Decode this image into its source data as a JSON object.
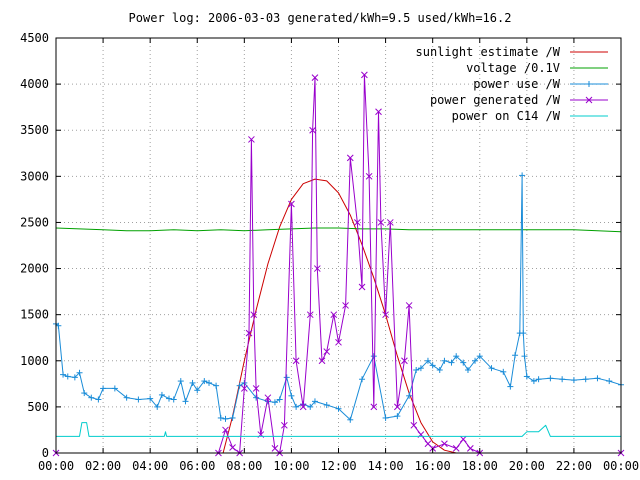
{
  "chart_data": {
    "type": "line",
    "title": "Power log: 2006-03-03 generated/kWh=9.5 used/kWh=16.2",
    "xlabel": "",
    "ylabel": "",
    "xlim": [
      0,
      24
    ],
    "ylim": [
      0,
      4500
    ],
    "x_ticks": [
      0,
      2,
      4,
      6,
      8,
      10,
      12,
      14,
      16,
      18,
      20,
      22,
      24
    ],
    "x_tick_labels": [
      "00:00",
      "02:00",
      "04:00",
      "06:00",
      "08:00",
      "10:00",
      "12:00",
      "14:00",
      "16:00",
      "18:00",
      "20:00",
      "22:00",
      "00:00"
    ],
    "y_ticks": [
      0,
      500,
      1000,
      1500,
      2000,
      2500,
      3000,
      3500,
      4000,
      4500
    ],
    "y_tick_labels": [
      "0",
      "500",
      "1000",
      "1500",
      "2000",
      "2500",
      "3000",
      "3500",
      "4000",
      "4500"
    ],
    "grid": true,
    "legend_position": "top-right",
    "series": [
      {
        "name": "sunlight estimate /W",
        "color": "#cc0000",
        "marker": "none",
        "x": [
          7.1,
          7.5,
          8.0,
          8.5,
          9.0,
          9.5,
          10.0,
          10.5,
          11.0,
          11.5,
          12.0,
          12.5,
          13.0,
          13.5,
          14.0,
          14.5,
          15.0,
          15.5,
          16.0,
          16.5,
          17.0
        ],
        "values": [
          0,
          400,
          1000,
          1550,
          2050,
          2450,
          2750,
          2920,
          2970,
          2950,
          2820,
          2580,
          2260,
          1900,
          1500,
          1050,
          650,
          330,
          120,
          30,
          0
        ]
      },
      {
        "name": "voltage /0.1V",
        "color": "#00a000",
        "marker": "none",
        "x": [
          0,
          1,
          2,
          3,
          4,
          5,
          6,
          7,
          8,
          9,
          10,
          11,
          12,
          13,
          14,
          15,
          16,
          17,
          18,
          19,
          20,
          21,
          22,
          23,
          24
        ],
        "values": [
          2440,
          2430,
          2420,
          2410,
          2410,
          2420,
          2410,
          2420,
          2410,
          2420,
          2430,
          2440,
          2440,
          2430,
          2430,
          2420,
          2420,
          2420,
          2420,
          2420,
          2420,
          2420,
          2420,
          2410,
          2400
        ]
      },
      {
        "name": "power use /W",
        "color": "#1a8cd8",
        "marker": "plus",
        "x": [
          0,
          0.1,
          0.3,
          0.5,
          0.8,
          1.0,
          1.2,
          1.5,
          1.8,
          2.0,
          2.5,
          3.0,
          3.5,
          4.0,
          4.3,
          4.5,
          4.8,
          5.0,
          5.3,
          5.5,
          5.8,
          6.0,
          6.3,
          6.5,
          6.8,
          7.0,
          7.2,
          7.5,
          7.8,
          8.0,
          8.5,
          9.0,
          9.3,
          9.5,
          9.8,
          10.0,
          10.2,
          10.5,
          10.8,
          11.0,
          11.5,
          12.0,
          12.5,
          13.0,
          13.5,
          14.0,
          14.5,
          15.0,
          15.3,
          15.5,
          15.8,
          16.0,
          16.3,
          16.5,
          16.8,
          17.0,
          17.3,
          17.5,
          17.8,
          18.0,
          18.5,
          19.0,
          19.3,
          19.5,
          19.7,
          19.8,
          19.85,
          19.9,
          20.0,
          20.3,
          20.5,
          21.0,
          21.5,
          22.0,
          22.5,
          23.0,
          23.5,
          24.0
        ],
        "values": [
          1400,
          1380,
          850,
          830,
          820,
          870,
          650,
          600,
          580,
          700,
          700,
          600,
          580,
          590,
          500,
          630,
          590,
          580,
          780,
          560,
          760,
          680,
          780,
          760,
          730,
          380,
          370,
          380,
          730,
          760,
          600,
          560,
          550,
          580,
          820,
          620,
          500,
          530,
          500,
          560,
          520,
          480,
          360,
          800,
          1050,
          380,
          400,
          620,
          900,
          920,
          1000,
          950,
          900,
          1000,
          980,
          1050,
          980,
          900,
          1000,
          1050,
          920,
          880,
          720,
          1060,
          1300,
          3010,
          1300,
          1050,
          830,
          780,
          800,
          810,
          800,
          790,
          800,
          810,
          780,
          740
        ]
      },
      {
        "name": "power generated /W",
        "color": "#9900cc",
        "marker": "cross",
        "x": [
          0,
          6.9,
          7.2,
          7.5,
          7.8,
          8.0,
          8.2,
          8.3,
          8.4,
          8.5,
          8.7,
          9.0,
          9.3,
          9.5,
          9.7,
          10.0,
          10.2,
          10.5,
          10.8,
          10.9,
          11.0,
          11.1,
          11.3,
          11.5,
          11.8,
          12.0,
          12.3,
          12.5,
          12.8,
          13.0,
          13.1,
          13.3,
          13.5,
          13.7,
          13.8,
          14.0,
          14.2,
          14.5,
          14.8,
          15.0,
          15.2,
          15.5,
          15.8,
          16.0,
          16.5,
          17.0,
          17.3,
          17.6,
          18.0,
          24.0
        ],
        "values": [
          0,
          0,
          250,
          60,
          0,
          700,
          1300,
          3400,
          1500,
          700,
          200,
          600,
          50,
          0,
          300,
          2700,
          1000,
          500,
          1500,
          3500,
          4070,
          2000,
          1000,
          1100,
          1500,
          1200,
          1600,
          3200,
          2500,
          1800,
          4100,
          3000,
          500,
          3700,
          2500,
          1500,
          2500,
          500,
          1000,
          1600,
          300,
          200,
          100,
          50,
          100,
          50,
          150,
          50,
          0,
          0
        ]
      },
      {
        "name": "power on C14 /W",
        "color": "#00cccc",
        "marker": "none",
        "x": [
          0,
          1.0,
          1.1,
          1.3,
          1.4,
          4.6,
          4.65,
          4.7,
          19.8,
          20.0,
          20.5,
          20.8,
          21.0,
          24.0
        ],
        "values": [
          180,
          180,
          330,
          330,
          180,
          180,
          230,
          180,
          180,
          230,
          230,
          300,
          180,
          180
        ]
      }
    ]
  }
}
